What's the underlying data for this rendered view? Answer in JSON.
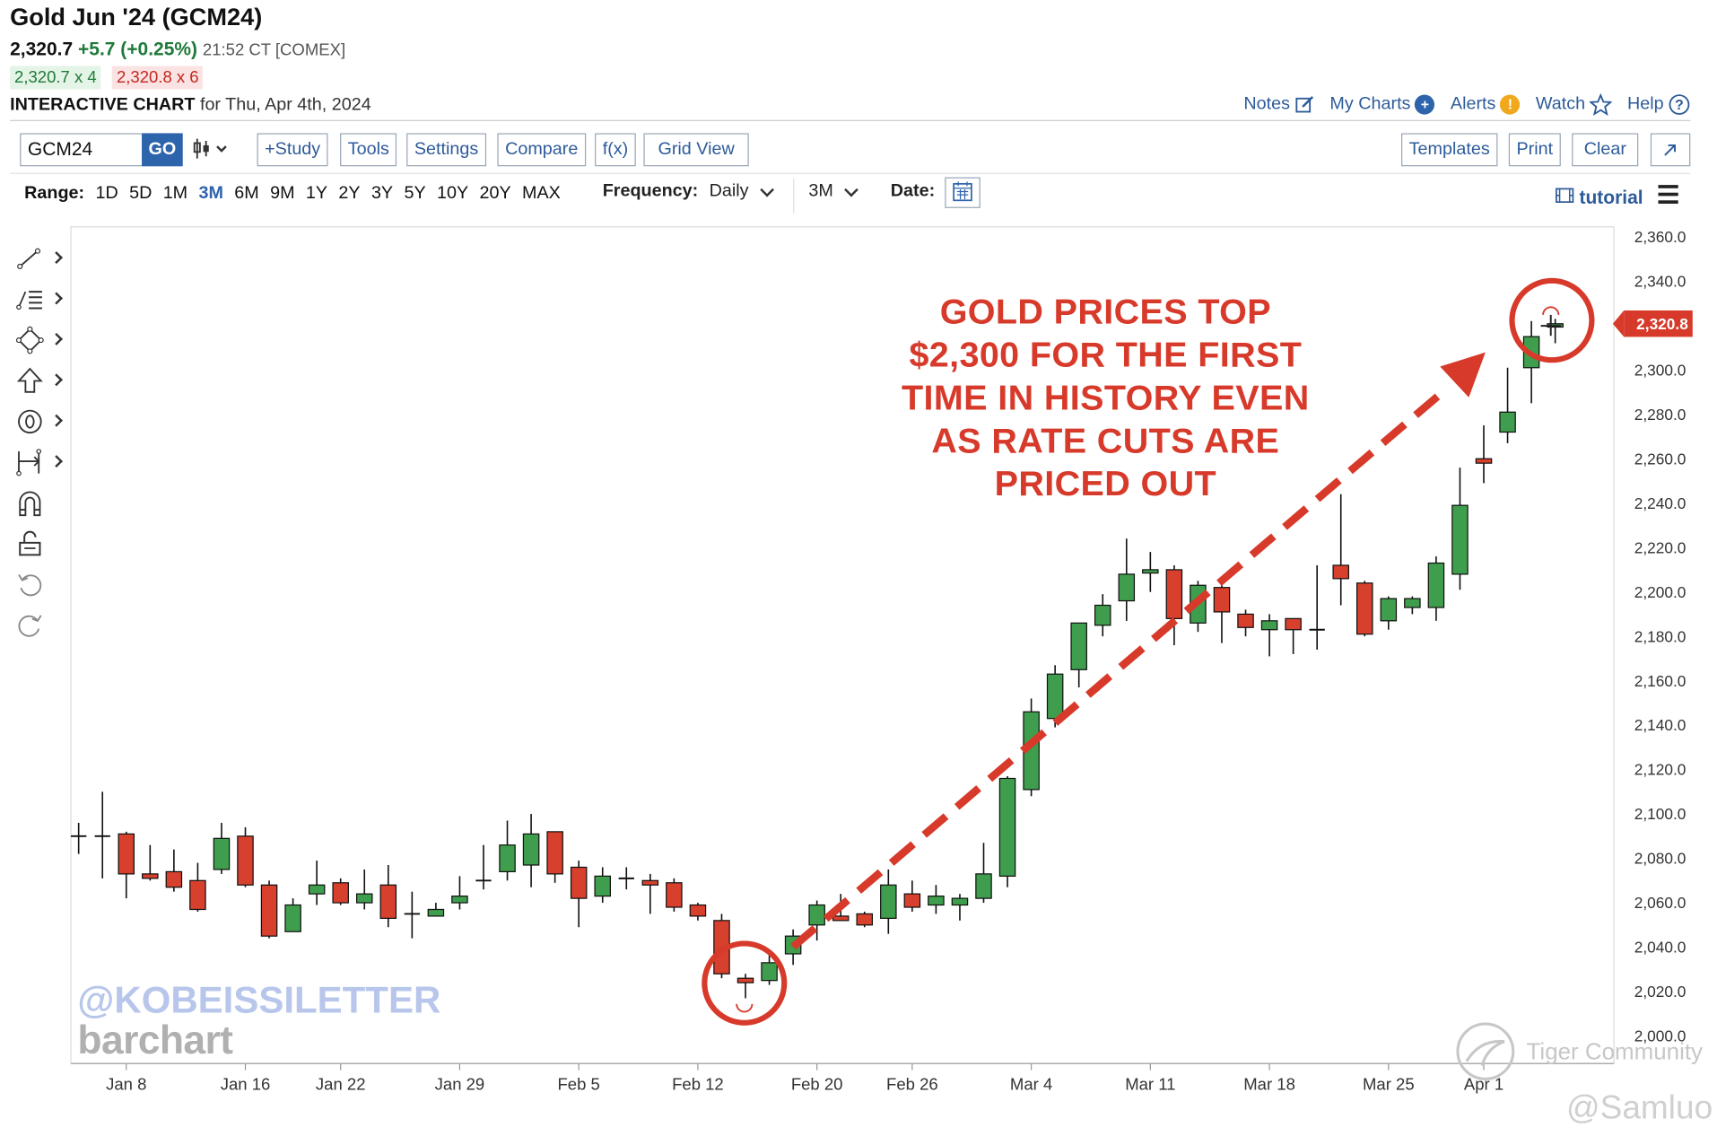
{
  "header": {
    "title": "Gold Jun '24 (GCM24)",
    "last": "2,320.7",
    "change": "+5.7 (+0.25%)",
    "time": "21:52 CT [COMEX]",
    "bid": "2,320.7 x 4",
    "ask": "2,320.8 x 6",
    "chart_label": "INTERACTIVE CHART",
    "chart_for": "for Thu, Apr 4th, 2024"
  },
  "toplinks": {
    "notes": "Notes",
    "my_charts": "My Charts",
    "alerts": "Alerts",
    "watch": "Watch",
    "help": "Help"
  },
  "toolbar": {
    "symbol": "GCM24",
    "go": "GO",
    "study": "+Study",
    "tools": "Tools",
    "settings": "Settings",
    "compare": "Compare",
    "fx": "f(x)",
    "grid_view": "Grid View",
    "templates": "Templates",
    "print": "Print",
    "clear": "Clear"
  },
  "rangebar": {
    "range_label": "Range:",
    "ranges": [
      "1D",
      "5D",
      "1M",
      "3M",
      "6M",
      "9M",
      "1Y",
      "2Y",
      "3Y",
      "5Y",
      "10Y",
      "20Y",
      "MAX"
    ],
    "selected_range": "3M",
    "frequency_label": "Frequency:",
    "frequency": "Daily",
    "period": "3M",
    "date_label": "Date:",
    "tutorial": "tutorial"
  },
  "sidebar_icons": [
    "line-tool-icon",
    "fibonacci-tool-icon",
    "shape-tool-icon",
    "arrow-tool-icon",
    "label-tool-icon",
    "measure-tool-icon",
    "magnet-icon",
    "lock-icon",
    "undo-icon",
    "redo-icon"
  ],
  "annotation": {
    "line1": "GOLD PRICES TOP",
    "line2": "$2,300 FOR THE FIRST",
    "line3": "TIME IN HISTORY EVEN",
    "line4": "AS RATE CUTS ARE",
    "line5": "PRICED OUT"
  },
  "watermarks": {
    "kobeissi": "@KOBEISSILETTER",
    "barchart": "barchart",
    "tiger": "Tiger Community",
    "samluo": "@Samluo"
  },
  "current_price_tag": "2,320.8",
  "colors": {
    "up": "#3f9e4d",
    "down": "#d7402d",
    "accent": "#2e64ab",
    "annotation": "#d73a2a"
  },
  "chart_data": {
    "type": "candlestick",
    "title": "Gold Jun '24 (GCM24)",
    "frequency": "Daily",
    "ylim": [
      2000,
      2360
    ],
    "y_ticks": [
      "2,000.0",
      "2,020.0",
      "2,040.0",
      "2,060.0",
      "2,080.0",
      "2,100.0",
      "2,120.0",
      "2,140.0",
      "2,160.0",
      "2,180.0",
      "2,200.0",
      "2,220.0",
      "2,240.0",
      "2,260.0",
      "2,280.0",
      "2,300.0",
      "2,320.0",
      "2,340.0",
      "2,360.0"
    ],
    "x_ticks": [
      "Jan 8",
      "Jan 16",
      "Jan 22",
      "Jan 29",
      "Feb 5",
      "Feb 12",
      "Feb 20",
      "Feb 26",
      "Mar 4",
      "Mar 11",
      "Mar 18",
      "Mar 25",
      "Apr 1"
    ],
    "x_tick_index": [
      2,
      7,
      11,
      16,
      21,
      26,
      31,
      35,
      40,
      45,
      50,
      55,
      59
    ],
    "candles": [
      {
        "o": 2090.0,
        "h": 2096.0,
        "l": 2082.0,
        "c": 2090.0
      },
      {
        "o": 2090.0,
        "h": 2110.0,
        "l": 2071.0,
        "c": 2090.0
      },
      {
        "o": 2091.0,
        "h": 2092.0,
        "l": 2062.0,
        "c": 2073.0
      },
      {
        "o": 2073.0,
        "h": 2086.0,
        "l": 2070.0,
        "c": 2071.0
      },
      {
        "o": 2074.0,
        "h": 2084.0,
        "l": 2065.0,
        "c": 2067.0
      },
      {
        "o": 2070.0,
        "h": 2078.0,
        "l": 2056.0,
        "c": 2057.0
      },
      {
        "o": 2075.0,
        "h": 2096.0,
        "l": 2073.0,
        "c": 2089.0
      },
      {
        "o": 2090.0,
        "h": 2094.0,
        "l": 2067.0,
        "c": 2068.0
      },
      {
        "o": 2068.0,
        "h": 2070.0,
        "l": 2044.0,
        "c": 2045.0
      },
      {
        "o": 2047.0,
        "h": 2062.0,
        "l": 2047.0,
        "c": 2059.0
      },
      {
        "o": 2064.0,
        "h": 2079.0,
        "l": 2059.0,
        "c": 2068.0
      },
      {
        "o": 2069.0,
        "h": 2071.0,
        "l": 2059.0,
        "c": 2060.0
      },
      {
        "o": 2060.0,
        "h": 2075.0,
        "l": 2057.0,
        "c": 2064.0
      },
      {
        "o": 2068.0,
        "h": 2077.0,
        "l": 2049.0,
        "c": 2053.0
      },
      {
        "o": 2055.0,
        "h": 2065.0,
        "l": 2044.0,
        "c": 2055.0
      },
      {
        "o": 2054.0,
        "h": 2060.0,
        "l": 2054.0,
        "c": 2057.0
      },
      {
        "o": 2060.0,
        "h": 2072.0,
        "l": 2057.0,
        "c": 2063.0
      },
      {
        "o": 2070.0,
        "h": 2086.0,
        "l": 2066.0,
        "c": 2070.0
      },
      {
        "o": 2074.0,
        "h": 2097.0,
        "l": 2070.0,
        "c": 2086.0
      },
      {
        "o": 2077.0,
        "h": 2100.0,
        "l": 2067.0,
        "c": 2091.0
      },
      {
        "o": 2092.0,
        "h": 2092.0,
        "l": 2069.0,
        "c": 2073.0
      },
      {
        "o": 2076.0,
        "h": 2079.0,
        "l": 2049.0,
        "c": 2062.0
      },
      {
        "o": 2063.0,
        "h": 2076.0,
        "l": 2060.0,
        "c": 2072.0
      },
      {
        "o": 2071.0,
        "h": 2076.0,
        "l": 2066.0,
        "c": 2071.0
      },
      {
        "o": 2070.0,
        "h": 2073.0,
        "l": 2055.0,
        "c": 2068.0
      },
      {
        "o": 2069.0,
        "h": 2071.0,
        "l": 2056.0,
        "c": 2058.0
      },
      {
        "o": 2059.0,
        "h": 2060.0,
        "l": 2052.0,
        "c": 2054.0
      },
      {
        "o": 2052.0,
        "h": 2055.0,
        "l": 2026.0,
        "c": 2028.0
      },
      {
        "o": 2026.0,
        "h": 2028.0,
        "l": 2017.0,
        "c": 2024.0
      },
      {
        "o": 2025.0,
        "h": 2037.0,
        "l": 2023.0,
        "c": 2033.0
      },
      {
        "o": 2037.0,
        "h": 2048.0,
        "l": 2032.0,
        "c": 2045.0
      },
      {
        "o": 2050.0,
        "h": 2061.0,
        "l": 2043.0,
        "c": 2059.0
      },
      {
        "o": 2054.0,
        "h": 2064.0,
        "l": 2052.0,
        "c": 2052.0
      },
      {
        "o": 2055.0,
        "h": 2056.0,
        "l": 2049.0,
        "c": 2050.0
      },
      {
        "o": 2053.0,
        "h": 2075.0,
        "l": 2046.0,
        "c": 2068.0
      },
      {
        "o": 2064.0,
        "h": 2070.0,
        "l": 2056.0,
        "c": 2058.0
      },
      {
        "o": 2059.0,
        "h": 2068.0,
        "l": 2055.0,
        "c": 2063.0
      },
      {
        "o": 2059.0,
        "h": 2064.0,
        "l": 2052.0,
        "c": 2062.0
      },
      {
        "o": 2062.0,
        "h": 2087.0,
        "l": 2060.0,
        "c": 2073.0
      },
      {
        "o": 2072.0,
        "h": 2117.0,
        "l": 2067.0,
        "c": 2116.0
      },
      {
        "o": 2111.0,
        "h": 2152.0,
        "l": 2108.0,
        "c": 2146.0
      },
      {
        "o": 2143.0,
        "h": 2167.0,
        "l": 2139.0,
        "c": 2163.0
      },
      {
        "o": 2165.0,
        "h": 2186.0,
        "l": 2157.0,
        "c": 2186.0
      },
      {
        "o": 2185.0,
        "h": 2199.0,
        "l": 2180.0,
        "c": 2194.0
      },
      {
        "o": 2196.0,
        "h": 2224.0,
        "l": 2187.0,
        "c": 2208.0
      },
      {
        "o": 2209.0,
        "h": 2218.0,
        "l": 2200.0,
        "c": 2210.0
      },
      {
        "o": 2210.0,
        "h": 2212.0,
        "l": 2176.0,
        "c": 2188.0
      },
      {
        "o": 2186.0,
        "h": 2205.0,
        "l": 2182.0,
        "c": 2203.0
      },
      {
        "o": 2202.0,
        "h": 2203.0,
        "l": 2177.0,
        "c": 2191.0
      },
      {
        "o": 2190.0,
        "h": 2192.0,
        "l": 2180.0,
        "c": 2184.0
      },
      {
        "o": 2183.0,
        "h": 2190.0,
        "l": 2171.0,
        "c": 2187.0
      },
      {
        "o": 2188.0,
        "h": 2188.0,
        "l": 2172.0,
        "c": 2183.0
      },
      {
        "o": 2183.0,
        "h": 2212.0,
        "l": 2174.0,
        "c": 2183.0
      },
      {
        "o": 2212.0,
        "h": 2244.0,
        "l": 2194.0,
        "c": 2206.0
      },
      {
        "o": 2204.0,
        "h": 2205.0,
        "l": 2180.0,
        "c": 2181.0
      },
      {
        "o": 2187.0,
        "h": 2198.0,
        "l": 2183.0,
        "c": 2197.0
      },
      {
        "o": 2193.0,
        "h": 2198.0,
        "l": 2190.0,
        "c": 2197.0
      },
      {
        "o": 2193.0,
        "h": 2216.0,
        "l": 2187.0,
        "c": 2213.0
      },
      {
        "o": 2208.0,
        "h": 2256.0,
        "l": 2201.0,
        "c": 2239.0
      },
      {
        "o": 2260.0,
        "h": 2275.0,
        "l": 2249.0,
        "c": 2258.0
      },
      {
        "o": 2272.0,
        "h": 2301.0,
        "l": 2267.0,
        "c": 2281.0
      },
      {
        "o": 2301.0,
        "h": 2322.0,
        "l": 2285.0,
        "c": 2315.0
      },
      {
        "o": 2320.0,
        "h": 2323.0,
        "l": 2312.0,
        "c": 2320.8
      }
    ]
  }
}
